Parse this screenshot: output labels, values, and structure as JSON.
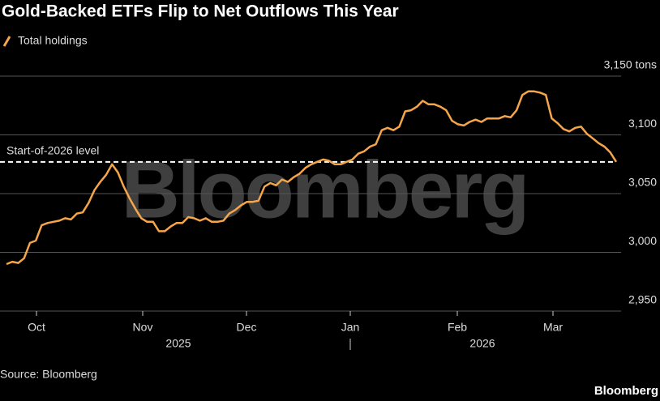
{
  "chart_data": {
    "type": "line",
    "title": "Gold-Backed ETFs Flip to Net Outflows This Year",
    "watermark": "Bloomberg",
    "source": "Source: Bloomberg",
    "brand": "Bloomberg",
    "xticks": [
      "Oct",
      "Nov",
      "Dec",
      "Jan",
      "Feb",
      "Mar"
    ],
    "years": [
      "2025",
      "2026"
    ],
    "ylim": [
      2950,
      3150
    ],
    "yticks": [
      {
        "value": 2950,
        "label": "2,950"
      },
      {
        "value": 3000,
        "label": "3,000"
      },
      {
        "value": 3050,
        "label": "3,050"
      },
      {
        "value": 3100,
        "label": "3,100"
      },
      {
        "value": 3150,
        "label": "3,150 tons"
      }
    ],
    "grid": true,
    "reference": {
      "label": "Start-of-2026 level",
      "value": 3077
    },
    "series": [
      {
        "name": "Total holdings",
        "color": "#f5a54a",
        "values": [
          2990,
          2992,
          2991,
          2995,
          3008,
          3010,
          3023,
          3025,
          3026,
          3027,
          3029,
          3028,
          3033,
          3034,
          3042,
          3053,
          3060,
          3066,
          3075,
          3068,
          3056,
          3046,
          3037,
          3029,
          3026,
          3026,
          3018,
          3018,
          3022,
          3025,
          3025,
          3030,
          3029,
          3027,
          3029,
          3026,
          3026,
          3027,
          3033,
          3036,
          3040,
          3043,
          3043,
          3044,
          3056,
          3059,
          3057,
          3062,
          3060,
          3064,
          3067,
          3072,
          3075,
          3077,
          3079,
          3078,
          3075,
          3075,
          3077,
          3079,
          3084,
          3086,
          3090,
          3092,
          3104,
          3106,
          3104,
          3107,
          3120,
          3121,
          3124,
          3129,
          3126,
          3126,
          3124,
          3121,
          3112,
          3109,
          3108,
          3111,
          3113,
          3111,
          3114,
          3114,
          3114,
          3116,
          3115,
          3121,
          3134,
          3137,
          3137,
          3136,
          3134,
          3114,
          3110,
          3105,
          3103,
          3106,
          3107,
          3101,
          3097,
          3093,
          3090,
          3085,
          3077
        ]
      }
    ]
  }
}
